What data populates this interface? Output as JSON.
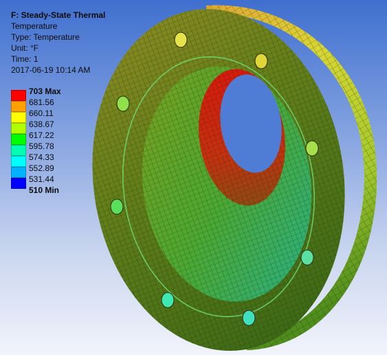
{
  "header": {
    "title": "F: Steady-State Thermal",
    "result_name": "Temperature",
    "type_line": "Type: Temperature",
    "unit_line": "Unit: °F",
    "time_line": "Time: 1",
    "timestamp": "2017-06-19 10:14 AM"
  },
  "legend": {
    "max_label": "703 Max",
    "min_label": "510 Min",
    "levels": [
      "681.56",
      "660.11",
      "638.67",
      "617.22",
      "595.78",
      "574.33",
      "552.89",
      "531.44"
    ],
    "colors": [
      "#ff0000",
      "#ff9f00",
      "#ffff00",
      "#b2ff00",
      "#00ff00",
      "#00ffb2",
      "#00ffff",
      "#00b2ff",
      "#0000ff"
    ]
  },
  "model": {
    "description_icon": "flange-mesh-model",
    "face_color": "#6a8a1e",
    "bore_hot_color": "#e21b0e",
    "rim_warm_color": "#d9d431",
    "mesh_line_color": "#1c2408"
  }
}
